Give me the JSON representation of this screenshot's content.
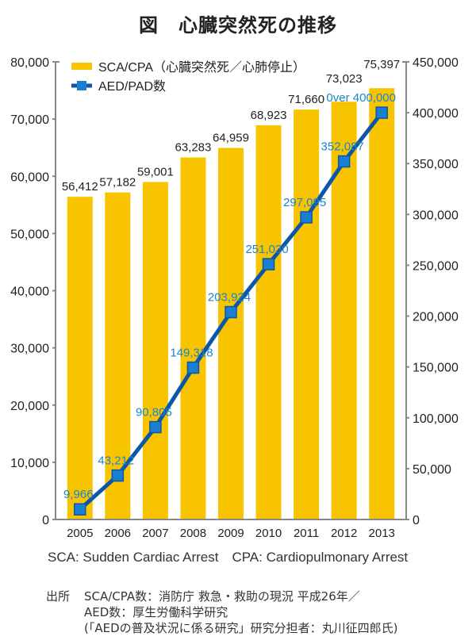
{
  "title": "図　心臓突然死の推移",
  "note": "SCA: Sudden Cardiac Arrest　CPA:  Cardiopulmonary Arrest",
  "source": {
    "label": "出所",
    "lines": [
      "SCA/CPA数：消防庁 救急・救助の現況 平成26年／",
      "AED数：厚生労働科学研究",
      "(「AEDの普及状況に係る研究」研究分担者：丸川征四郎氏)"
    ]
  },
  "chart_data": {
    "type": "bar",
    "categories": [
      "2005",
      "2006",
      "2007",
      "2008",
      "2009",
      "2010",
      "2011",
      "2012",
      "2013"
    ],
    "series": [
      {
        "name": "SCA/CPA（心臓突然死／心肺停止）",
        "type": "bar",
        "axis": "left",
        "color": "#f8c400",
        "values": [
          56412,
          57182,
          59001,
          63283,
          64959,
          68923,
          71660,
          73023,
          75397
        ],
        "labels": [
          "56,412",
          "57,182",
          "59,001",
          "63,283",
          "64,959",
          "68,923",
          "71,660",
          "73,023",
          "75,397"
        ]
      },
      {
        "name": "AED/PAD数",
        "type": "line",
        "axis": "right",
        "color": "#0b56a8",
        "marker_color": "#1a7fd0",
        "values": [
          9966,
          43212,
          90805,
          149318,
          203924,
          251030,
          297095,
          352087,
          400000
        ],
        "labels": [
          "9,966",
          "43,212",
          "90,805",
          "149,318",
          "203,924",
          "251,030",
          "297,095",
          "352,087",
          "0ver 400,000"
        ],
        "label_color": "#1a86cc"
      }
    ],
    "y_left": {
      "range": [
        0,
        80000
      ],
      "ticks": [
        "0",
        "10,000",
        "20,000",
        "30,000",
        "40,000",
        "50,000",
        "60,000",
        "70,000",
        "80,000"
      ]
    },
    "y_right": {
      "range": [
        0,
        450000
      ],
      "ticks": [
        "0",
        "50,000",
        "100,000",
        "150,000",
        "200,000",
        "250,000",
        "300,000",
        "350,000",
        "400,000",
        "450,000"
      ]
    },
    "grid": false,
    "legend": "top-left"
  }
}
